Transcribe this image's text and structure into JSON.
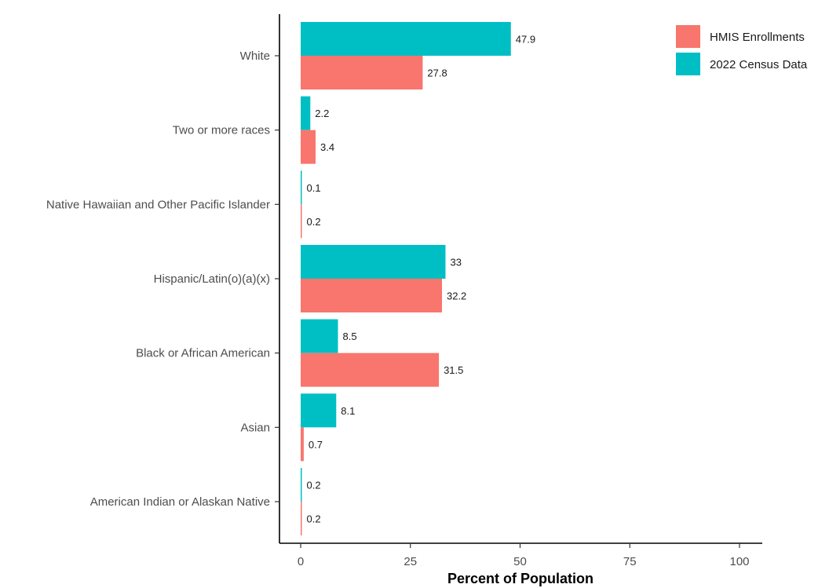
{
  "chart_data": {
    "type": "bar",
    "orientation": "horizontal",
    "categories": [
      "White",
      "Two or more races",
      "Native Hawaiian and Other Pacific Islander",
      "Hispanic/Latin(o)(a)(x)",
      "Black or African American",
      "Asian",
      "American Indian or Alaskan Native"
    ],
    "series": [
      {
        "name": "HMIS Enrollments",
        "color": "#f8766d",
        "values": [
          27.8,
          3.4,
          0.2,
          32.2,
          31.5,
          0.7,
          0.2
        ]
      },
      {
        "name": "2022 Census Data",
        "color": "#00bfc4",
        "values": [
          47.9,
          2.2,
          0.1,
          33,
          8.5,
          8.1,
          0.2
        ]
      }
    ],
    "xlabel": "Percent of Population",
    "ylabel": "",
    "xlim": [
      0,
      100
    ],
    "xticks": [
      "0",
      "25",
      "50",
      "75",
      "100"
    ],
    "xtick_values": [
      0,
      25,
      50,
      75,
      100
    ],
    "legend_position": "top-right",
    "grid": false
  }
}
